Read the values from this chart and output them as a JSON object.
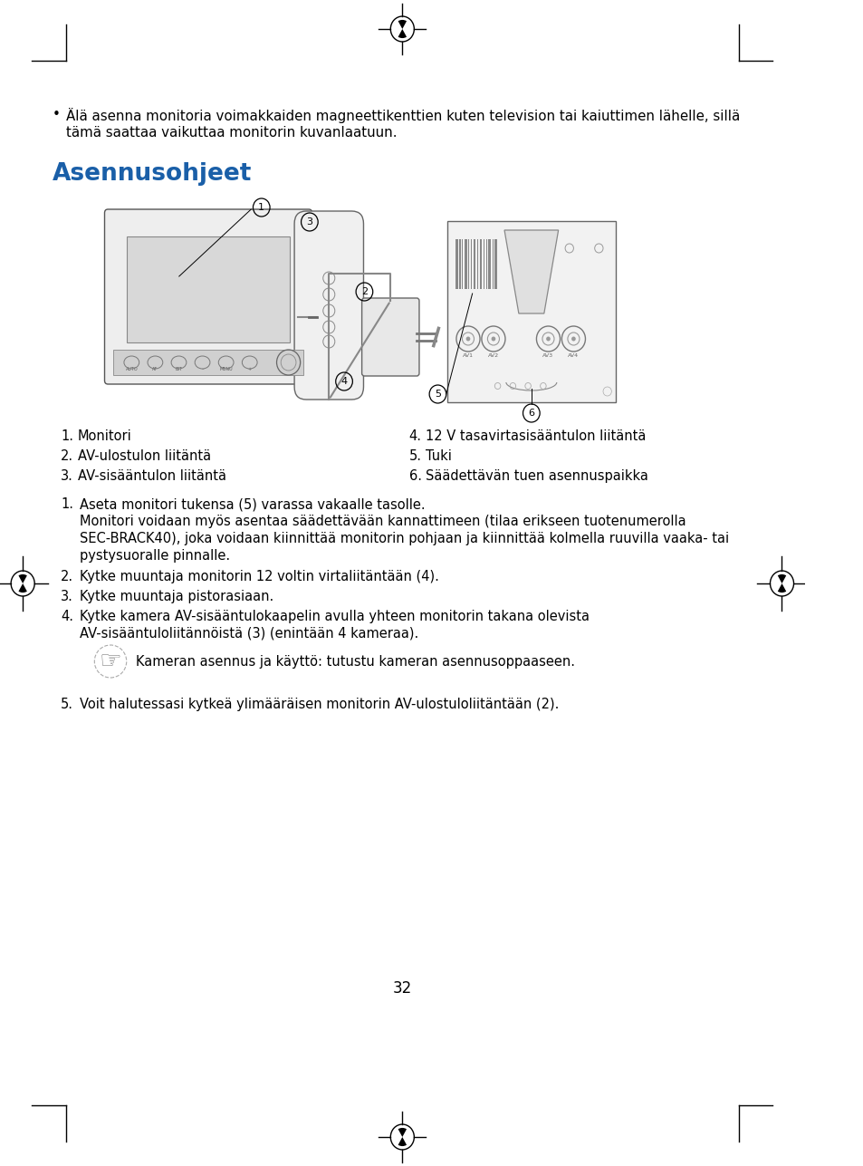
{
  "bg_color": "#ffffff",
  "title_text": "Asennusohjeet",
  "title_color": "#1a5fa8",
  "bullet_text_line1": "Älä asenna monitoria voimakkaiden magneettikenttien kuten television tai kaiuttimen lähelle, sillä",
  "bullet_text_line2": "tämä saattaa vaikuttaa monitorin kuvanlaatuun.",
  "numbered_list_left": [
    "Monitori",
    "AV-ulostulon liitäntä",
    "AV-sisääntulon liitäntä"
  ],
  "numbered_list_right": [
    "12 V tasavirtasisääntulon liitäntä",
    "Tuki",
    "Säädettävän tuen asennuspaikka"
  ],
  "inst1_main": "Aseta monitori tukensa (5) varassa vakaalle tasolle.",
  "inst1_sub1": "Monitori voidaan myös asentaa säädettävään kannattimeen (tilaa erikseen tuotenumerolla",
  "inst1_sub2": "SEC-BRACK40), joka voidaan kiinnittää monitorin pohjaan ja kiinnittää kolmella ruuvilla vaaka- tai",
  "inst1_sub3": "pystysuoralle pinnalle.",
  "inst2_main": "Kytke muuntaja monitorin 12 voltin virtaliitäntään (4).",
  "inst3_main": "Kytke muuntaja pistorasiaan.",
  "inst4_main": "Kytke kamera AV-sisääntulokaapelin avulla yhteen monitorin takana olevista",
  "inst4_sub": "AV-sisääntuloliitännöistä (3) (enintään 4 kameraa).",
  "note_text": "Kameran asennus ja käyttö: tutustu kameran asennusoppaaseen.",
  "inst5_main": "Voit halutessasi kytkeä ylimääräisen monitorin AV-ulostuloliitäntään (2).",
  "page_number": "32"
}
